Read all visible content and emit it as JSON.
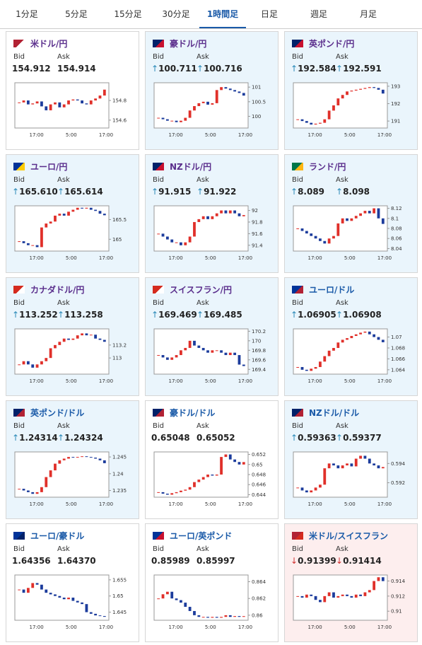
{
  "tabs": [
    "1分足",
    "5分足",
    "15分足",
    "30分足",
    "1時間足",
    "日足",
    "週足",
    "月足"
  ],
  "active_tab": 4,
  "cards": [
    {
      "name": "米ドル/円",
      "name_color": "#5a2e8c",
      "trend": "flat",
      "bid_label": "Bid",
      "ask_label": "Ask",
      "bid": {
        "value": "154.912"
      },
      "ask": {
        "value": "154.914"
      },
      "chart": {
        "type": "candlestick",
        "ylim": [
          154.52,
          154.98
        ],
        "yticks": [
          154.8,
          154.6
        ],
        "xlabels": [
          "17:00",
          "5:00",
          "17:00"
        ],
        "closes": [
          154.78,
          154.8,
          154.76,
          154.77,
          154.79,
          154.74,
          154.7,
          154.76,
          154.78,
          154.73,
          154.76,
          154.8,
          154.81,
          154.8,
          154.77,
          154.76,
          154.8,
          154.82,
          154.85,
          154.91
        ]
      }
    },
    {
      "name": "豪ドル/円",
      "name_color": "#5a2e8c",
      "trend": "up",
      "bid_label": "Bid",
      "ask_label": "Ask",
      "bid": {
        "arrow": "↑",
        "value": "100.711"
      },
      "ask": {
        "arrow": "↑",
        "value": "100.716"
      },
      "chart": {
        "type": "candlestick",
        "ylim": [
          99.6,
          101.15
        ],
        "yticks": [
          101,
          100.5,
          100
        ],
        "xlabels": [
          "17:00",
          "5:00",
          "17:00"
        ],
        "closes": [
          99.95,
          99.9,
          99.85,
          99.85,
          99.8,
          99.85,
          99.95,
          100.2,
          100.35,
          100.45,
          100.5,
          100.4,
          100.45,
          100.9,
          101.0,
          100.95,
          100.9,
          100.85,
          100.8,
          100.71
        ]
      }
    },
    {
      "name": "英ポンド/円",
      "name_color": "#5a2e8c",
      "trend": "up",
      "bid_label": "Bid",
      "ask_label": "Ask",
      "bid": {
        "arrow": "↑",
        "value": "192.584"
      },
      "ask": {
        "arrow": "↑",
        "value": "192.591"
      },
      "chart": {
        "type": "candlestick",
        "ylim": [
          190.6,
          193.2
        ],
        "yticks": [
          193,
          192,
          191
        ],
        "xlabels": [
          "17:00",
          "5:00",
          "17:00"
        ],
        "closes": [
          191.1,
          191.0,
          190.9,
          190.8,
          190.85,
          190.9,
          191.1,
          191.6,
          191.9,
          192.3,
          192.5,
          192.7,
          192.75,
          192.8,
          192.85,
          192.9,
          192.95,
          192.9,
          192.8,
          192.58
        ]
      }
    },
    {
      "name": "ユーロ/円",
      "name_color": "#5a2e8c",
      "trend": "up",
      "bid_label": "Bid",
      "ask_label": "Ask",
      "bid": {
        "arrow": "↑",
        "value": "165.610"
      },
      "ask": {
        "arrow": "↑",
        "value": "165.614"
      },
      "chart": {
        "type": "candlestick",
        "ylim": [
          164.7,
          165.85
        ],
        "yticks": [
          165.5,
          165
        ],
        "xlabels": [
          "17:00",
          "5:00",
          "17:00"
        ],
        "closes": [
          164.95,
          164.9,
          164.85,
          164.85,
          164.8,
          165.3,
          165.4,
          165.45,
          165.6,
          165.65,
          165.6,
          165.7,
          165.75,
          165.8,
          165.78,
          165.8,
          165.75,
          165.72,
          165.65,
          165.61
        ]
      }
    },
    {
      "name": "NZドル/円",
      "name_color": "#5a2e8c",
      "trend": "up",
      "bid_label": "Bid",
      "ask_label": "Ask",
      "bid": {
        "arrow": "↑",
        "value": "91.915"
      },
      "ask": {
        "arrow": "↑",
        "value": "91.922"
      },
      "chart": {
        "type": "candlestick",
        "ylim": [
          91.3,
          92.08
        ],
        "yticks": [
          92,
          91.8,
          91.6,
          91.4
        ],
        "xlabels": [
          "17:00",
          "5:00",
          "17:00"
        ],
        "closes": [
          91.6,
          91.55,
          91.5,
          91.45,
          91.45,
          91.4,
          91.45,
          91.55,
          91.8,
          91.85,
          91.9,
          91.85,
          91.9,
          91.95,
          92.0,
          91.95,
          92.0,
          91.95,
          91.9,
          91.92
        ]
      }
    },
    {
      "name": "ランド/円",
      "name_color": "#5a2e8c",
      "trend": "up",
      "bid_label": "Bid",
      "ask_label": "Ask",
      "bid": {
        "arrow": "↑",
        "value": "8.089"
      },
      "ask": {
        "arrow": "↑",
        "value": "8.098"
      },
      "chart": {
        "type": "candlestick",
        "ylim": [
          8.035,
          8.125
        ],
        "yticks": [
          8.12,
          8.1,
          8.08,
          8.06,
          8.04
        ],
        "xlabels": [
          "17:00",
          "5:00",
          "17:00"
        ],
        "closes": [
          8.08,
          8.075,
          8.07,
          8.065,
          8.06,
          8.055,
          8.05,
          8.06,
          8.065,
          8.09,
          8.1,
          8.095,
          8.1,
          8.105,
          8.11,
          8.115,
          8.11,
          8.12,
          8.1,
          8.089
        ]
      }
    },
    {
      "name": "カナダドル/円",
      "name_color": "#5a2e8c",
      "trend": "up",
      "bid_label": "Bid",
      "ask_label": "Ask",
      "bid": {
        "arrow": "↑",
        "value": "113.252"
      },
      "ask": {
        "arrow": "↑",
        "value": "113.258"
      },
      "chart": {
        "type": "candlestick",
        "ylim": [
          112.75,
          113.45
        ],
        "yticks": [
          113.2,
          113
        ],
        "xlabels": [
          "17:00",
          "5:00",
          "17:00"
        ],
        "closes": [
          112.9,
          112.95,
          112.9,
          112.85,
          112.9,
          112.95,
          113.0,
          113.15,
          113.2,
          113.25,
          113.3,
          113.28,
          113.3,
          113.35,
          113.38,
          113.35,
          113.36,
          113.3,
          113.28,
          113.25
        ]
      }
    },
    {
      "name": "スイスフラン/円",
      "name_color": "#5a2e8c",
      "trend": "up",
      "bid_label": "Bid",
      "ask_label": "Ask",
      "bid": {
        "arrow": "↑",
        "value": "169.469"
      },
      "ask": {
        "arrow": "↑",
        "value": "169.485"
      },
      "chart": {
        "type": "candlestick",
        "ylim": [
          169.3,
          170.25
        ],
        "yticks": [
          170.2,
          170,
          169.8,
          169.6,
          169.4
        ],
        "xlabels": [
          "17:00",
          "5:00",
          "17:00"
        ],
        "closes": [
          169.7,
          169.65,
          169.6,
          169.65,
          169.7,
          169.8,
          169.85,
          170.0,
          169.9,
          169.85,
          169.8,
          169.75,
          169.8,
          169.8,
          169.75,
          169.7,
          169.75,
          169.7,
          169.5,
          169.47
        ]
      }
    },
    {
      "name": "ユーロ/ドル",
      "name_color": "#1a5aa8",
      "trend": "up",
      "bid_label": "Bid",
      "ask_label": "Ask",
      "bid": {
        "arrow": "↑",
        "value": "1.06905"
      },
      "ask": {
        "arrow": "↑",
        "value": "1.06908"
      },
      "chart": {
        "type": "candlestick",
        "ylim": [
          1.0632,
          1.0715
        ],
        "yticks": [
          1.07,
          1.068,
          1.066,
          1.064
        ],
        "xlabels": [
          "17:00",
          "5:00",
          "17:00"
        ],
        "closes": [
          1.0645,
          1.064,
          1.0638,
          1.0642,
          1.0645,
          1.0655,
          1.0665,
          1.0675,
          1.068,
          1.069,
          1.0695,
          1.0698,
          1.0702,
          1.0705,
          1.0708,
          1.071,
          1.0705,
          1.07,
          1.0695,
          1.06905
        ]
      }
    },
    {
      "name": "英ポンド/ドル",
      "name_color": "#1a5aa8",
      "trend": "up",
      "bid_label": "Bid",
      "ask_label": "Ask",
      "bid": {
        "arrow": "↑",
        "value": "1.24314"
      },
      "ask": {
        "arrow": "↑",
        "value": "1.24324"
      },
      "chart": {
        "type": "candlestick",
        "ylim": [
          1.233,
          1.2465
        ],
        "yticks": [
          1.245,
          1.24,
          1.235
        ],
        "xlabels": [
          "17:00",
          "5:00",
          "17:00"
        ],
        "closes": [
          1.2355,
          1.235,
          1.2345,
          1.234,
          1.2345,
          1.236,
          1.239,
          1.241,
          1.243,
          1.244,
          1.2445,
          1.245,
          1.2448,
          1.245,
          1.2452,
          1.245,
          1.2448,
          1.2445,
          1.244,
          1.24314
        ]
      }
    },
    {
      "name": "豪ドル/ドル",
      "name_color": "#1a5aa8",
      "trend": "flat",
      "bid_label": "Bid",
      "ask_label": "Ask",
      "bid": {
        "value": "0.65048"
      },
      "ask": {
        "value": "0.65052"
      },
      "chart": {
        "type": "candlestick",
        "ylim": [
          0.6435,
          0.6525
        ],
        "yticks": [
          0.652,
          0.65,
          0.648,
          0.646,
          0.644
        ],
        "xlabels": [
          "17:00",
          "5:00",
          "17:00"
        ],
        "closes": [
          0.6445,
          0.6442,
          0.644,
          0.6443,
          0.6445,
          0.6448,
          0.645,
          0.6455,
          0.6465,
          0.647,
          0.6475,
          0.648,
          0.6478,
          0.648,
          0.6515,
          0.652,
          0.651,
          0.6505,
          0.65,
          0.65048
        ]
      }
    },
    {
      "name": "NZドル/ドル",
      "name_color": "#1a5aa8",
      "trend": "up",
      "bid_label": "Bid",
      "ask_label": "Ask",
      "bid": {
        "arrow": "↑",
        "value": "0.59363"
      },
      "ask": {
        "arrow": "↑",
        "value": "0.59377"
      },
      "chart": {
        "type": "candlestick",
        "ylim": [
          0.5905,
          0.5952
        ],
        "yticks": [
          0.594,
          0.592
        ],
        "xlabels": [
          "17:00",
          "5:00",
          "17:00"
        ],
        "closes": [
          0.5915,
          0.5912,
          0.591,
          0.5912,
          0.5915,
          0.5918,
          0.5935,
          0.594,
          0.5938,
          0.5935,
          0.5938,
          0.594,
          0.5937,
          0.5945,
          0.5948,
          0.5945,
          0.594,
          0.5938,
          0.5935,
          0.59363
        ]
      }
    },
    {
      "name": "ユーロ/豪ドル",
      "name_color": "#1a5aa8",
      "trend": "flat",
      "bid_label": "Bid",
      "ask_label": "Ask",
      "bid": {
        "value": "1.64356"
      },
      "ask": {
        "value": "1.64370"
      },
      "chart": {
        "type": "candlestick",
        "ylim": [
          1.6425,
          1.6565
        ],
        "yticks": [
          1.655,
          1.65,
          1.645
        ],
        "xlabels": [
          "17:00",
          "5:00",
          "17:00"
        ],
        "closes": [
          1.652,
          1.651,
          1.6525,
          1.654,
          1.6535,
          1.652,
          1.651,
          1.6505,
          1.65,
          1.6495,
          1.649,
          1.6495,
          1.6485,
          1.648,
          1.6475,
          1.645,
          1.6445,
          1.644,
          1.6438,
          1.64356
        ]
      }
    },
    {
      "name": "ユーロ/英ポンド",
      "name_color": "#1a5aa8",
      "trend": "flat",
      "bid_label": "Bid",
      "ask_label": "Ask",
      "bid": {
        "value": "0.85989"
      },
      "ask": {
        "value": "0.85997"
      },
      "chart": {
        "type": "candlestick",
        "ylim": [
          0.8594,
          0.8648
        ],
        "yticks": [
          0.864,
          0.862,
          0.86
        ],
        "xlabels": [
          "17:00",
          "5:00",
          "17:00"
        ],
        "closes": [
          0.862,
          0.8625,
          0.8628,
          0.862,
          0.8618,
          0.8615,
          0.861,
          0.8605,
          0.86,
          0.8598,
          0.8598,
          0.8597,
          0.8598,
          0.8597,
          0.8598,
          0.86,
          0.8598,
          0.8599,
          0.8598,
          0.85989
        ]
      }
    },
    {
      "name": "米ドル/スイスフラン",
      "name_color": "#1a5aa8",
      "trend": "down",
      "bid_label": "Bid",
      "ask_label": "Ask",
      "bid": {
        "arrow": "↓",
        "value": "0.91399"
      },
      "ask": {
        "arrow": "↓",
        "value": "0.91414"
      },
      "chart": {
        "type": "candlestick",
        "ylim": [
          0.9088,
          0.9148
        ],
        "yticks": [
          0.914,
          0.912,
          0.91
        ],
        "xlabels": [
          "17:00",
          "5:00",
          "17:00"
        ],
        "closes": [
          0.912,
          0.9118,
          0.9122,
          0.912,
          0.9115,
          0.9112,
          0.912,
          0.9125,
          0.9118,
          0.912,
          0.9122,
          0.912,
          0.9118,
          0.9122,
          0.912,
          0.9125,
          0.9128,
          0.914,
          0.9145,
          0.91399
        ]
      }
    }
  ]
}
